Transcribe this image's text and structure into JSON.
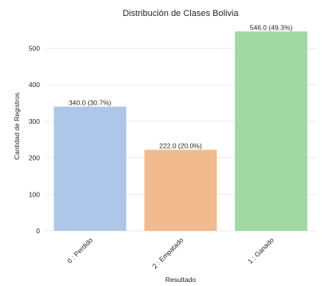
{
  "chart_data": {
    "type": "bar",
    "title": "Distribución de Clases Bolivia",
    "xlabel": "Resultado",
    "ylabel": "Cantidad de Registros",
    "categories": [
      "0 : Perdido",
      "2 : Empatado",
      "1 : Ganado"
    ],
    "values": [
      340,
      222,
      546
    ],
    "data_labels": [
      "340.0 (30.7%)",
      "222.0 (20.0%)",
      "546.0 (49.3%)"
    ],
    "colors": [
      "#aec7e8",
      "#f2bb8d",
      "#a1d8a4"
    ],
    "yticks": [
      0,
      100,
      200,
      300,
      400,
      500
    ],
    "ylim": [
      0,
      573
    ],
    "grid": true,
    "legend": "none"
  }
}
